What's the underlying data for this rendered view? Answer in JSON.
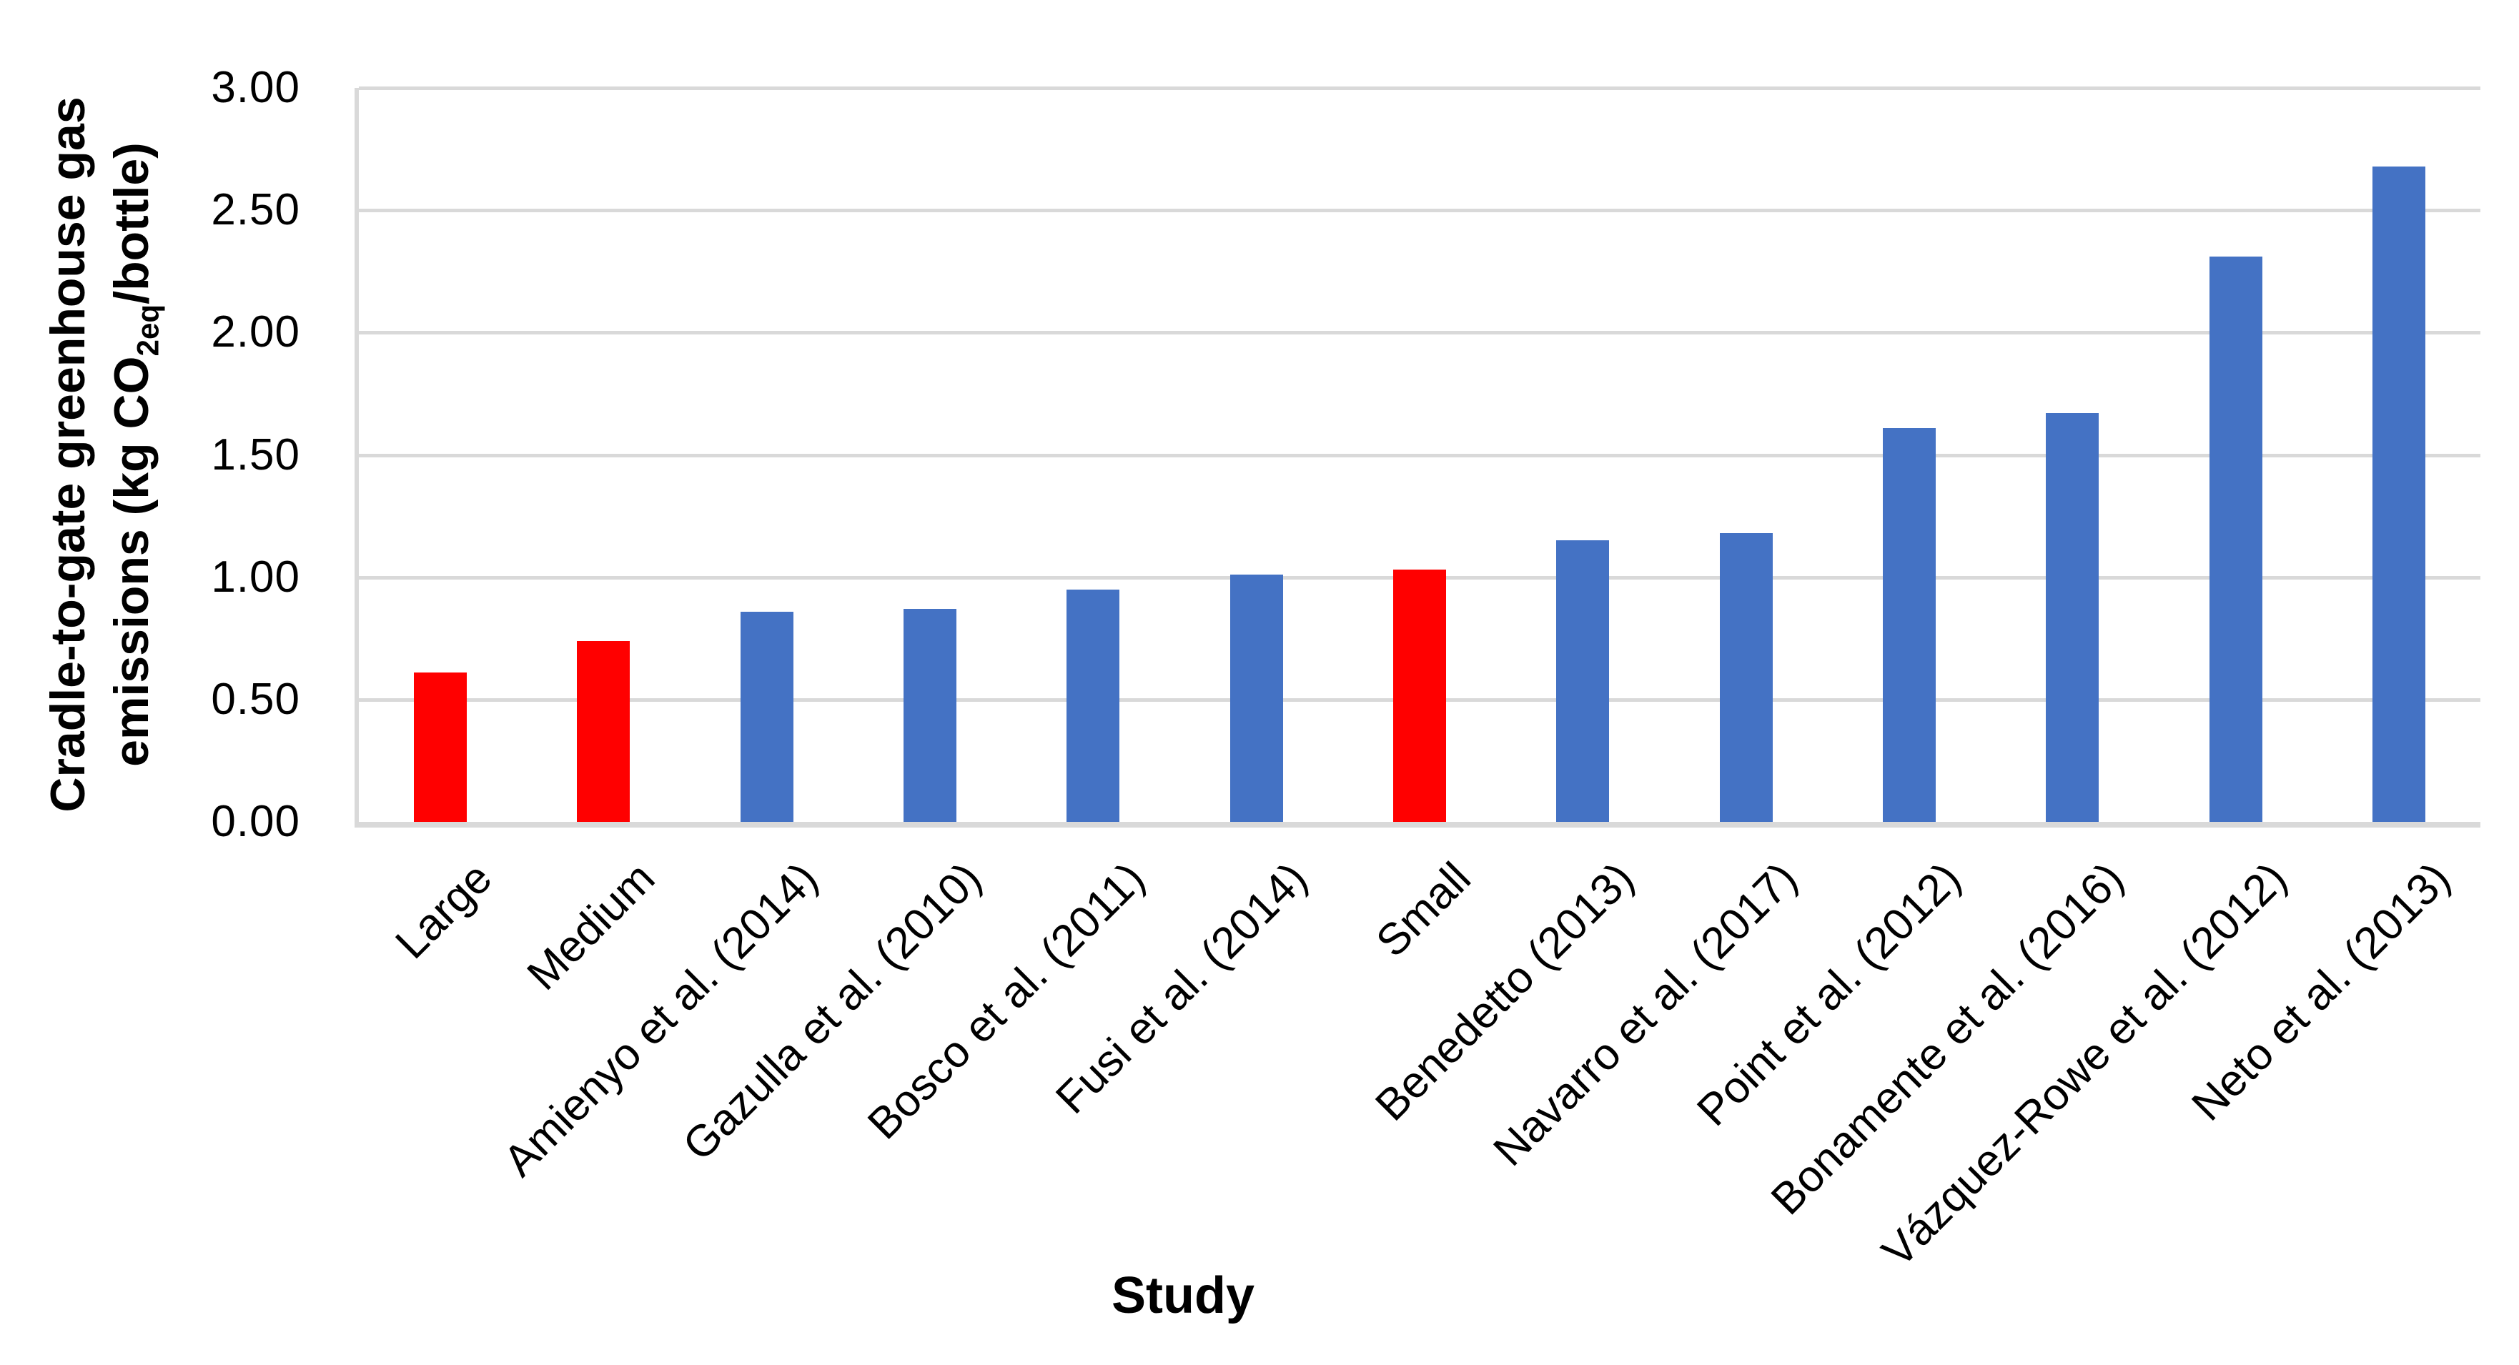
{
  "chart_data": {
    "type": "bar",
    "title": "",
    "categories": [
      "Large",
      "Medium",
      "Amienyo et al. (2014)",
      "Gazulla et al. (2010)",
      "Bosco et al. (2011)",
      "Fusi et al. (2014)",
      "Small",
      "Benedetto (2013)",
      "Navarro et al. (2017)",
      "Point et al. (2012)",
      "Bonamente et al. (2016)",
      "Vázquez-Rowe et al. (2012)",
      "Neto et al. (2013)"
    ],
    "values": [
      0.61,
      0.74,
      0.86,
      0.87,
      0.95,
      1.01,
      1.03,
      1.15,
      1.18,
      1.61,
      1.67,
      2.31,
      2.68
    ],
    "bar_colors": [
      "#FF0000",
      "#FF0000",
      "#4472C4",
      "#4472C4",
      "#4472C4",
      "#4472C4",
      "#FF0000",
      "#4472C4",
      "#4472C4",
      "#4472C4",
      "#4472C4",
      "#4472C4",
      "#4472C4"
    ],
    "highlight_color": "#FF0000",
    "default_color": "#4472C4",
    "xlabel": "Study",
    "ylabel_line1": "Cradle-to-gate greenhouse gas",
    "ylabel_line2_prefix": "emissions (kg CO",
    "ylabel_subscript": "2eq",
    "ylabel_line2_suffix": "/bottle)",
    "ylim": [
      0,
      3
    ],
    "ytick_step": 0.5,
    "ytick_labels": [
      "0.00",
      "0.50",
      "1.00",
      "1.50",
      "2.00",
      "2.50",
      "3.00"
    ],
    "grid": true,
    "gridline_color": "#D9D9D9",
    "axis_line_color": "#D9D9D9",
    "legend": "none",
    "x_label_rotation_deg": 45
  }
}
